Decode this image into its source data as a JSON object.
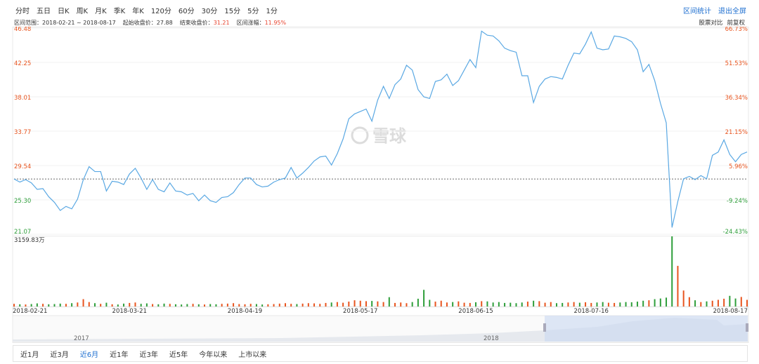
{
  "toolbar": {
    "periods": [
      "分时",
      "五日",
      "日K",
      "周K",
      "月K",
      "季K",
      "年K",
      "120分",
      "60分",
      "30分",
      "15分",
      "5分",
      "1分"
    ],
    "actions": [
      "区间统计",
      "退出全屏"
    ]
  },
  "info": {
    "range_label": "区间范围：",
    "range": "2018-02-21 ~ 2018-08-17",
    "start_label": "起始收盘价：",
    "end_label": "结束收盘价：",
    "change_label": "区间涨幅：",
    "change": "11.95%",
    "tools": [
      "股票对比",
      "前复权"
    ]
  },
  "range_tabs": [
    "近1月",
    "近3月",
    "近6月",
    "近1年",
    "近3年",
    "近5年",
    "今年以来",
    "上市以来"
  ],
  "active_tab_index": 2,
  "navigator": {
    "labels": [
      "2017",
      "2018"
    ]
  },
  "chart_data": {
    "type": "line",
    "watermark": "雪球",
    "color": "#5aa8e3",
    "up_color": "#e8541e",
    "down_color": "#2e9e3a",
    "start_close": 27.88,
    "categories": [
      "2018-02-21",
      null,
      null,
      null,
      null,
      null,
      null,
      null,
      null,
      null,
      null,
      null,
      null,
      null,
      null,
      null,
      null,
      null,
      null,
      null,
      "2018-03-21",
      null,
      null,
      null,
      null,
      null,
      null,
      null,
      null,
      null,
      null,
      null,
      null,
      null,
      null,
      null,
      null,
      null,
      null,
      null,
      "2018-04-19",
      null,
      null,
      null,
      null,
      null,
      null,
      null,
      null,
      null,
      null,
      null,
      null,
      null,
      null,
      null,
      null,
      null,
      null,
      null,
      "2018-05-17",
      null,
      null,
      null,
      null,
      null,
      null,
      null,
      null,
      null,
      null,
      null,
      null,
      null,
      null,
      null,
      null,
      null,
      null,
      null,
      "2018-06-15",
      null,
      null,
      null,
      null,
      null,
      null,
      null,
      null,
      null,
      null,
      null,
      null,
      null,
      null,
      null,
      null,
      null,
      null,
      null,
      "2018-07-16",
      null,
      null,
      null,
      null,
      null,
      null,
      null,
      null,
      null,
      null,
      null,
      null,
      null,
      null,
      null,
      null,
      null,
      null,
      null,
      null,
      null,
      null,
      null,
      null,
      null,
      null,
      "2018-08-17"
    ],
    "values": [
      27.88,
      27.5,
      27.8,
      27.4,
      26.6,
      26.7,
      25.7,
      25.0,
      24.0,
      24.5,
      24.2,
      25.4,
      27.8,
      29.4,
      28.8,
      28.8,
      26.4,
      27.6,
      27.5,
      27.2,
      28.5,
      29.2,
      28.0,
      26.6,
      27.8,
      26.6,
      26.3,
      27.4,
      26.4,
      26.3,
      25.9,
      26.1,
      25.2,
      25.9,
      25.2,
      25.0,
      25.6,
      25.7,
      26.2,
      27.2,
      28.0,
      28.0,
      27.2,
      26.9,
      27.0,
      27.5,
      27.8,
      28.0,
      29.3,
      28.0,
      28.6,
      29.3,
      30.1,
      30.6,
      30.7,
      29.6,
      31.0,
      32.8,
      35.3,
      35.9,
      36.2,
      36.5,
      35.0,
      37.6,
      39.3,
      37.8,
      39.5,
      40.2,
      41.9,
      41.3,
      38.9,
      38.0,
      37.8,
      39.9,
      40.1,
      40.8,
      39.4,
      40.0,
      41.3,
      42.6,
      41.6,
      46.1,
      45.6,
      45.5,
      44.9,
      44.0,
      43.7,
      43.5,
      40.6,
      40.6,
      37.3,
      39.3,
      40.2,
      40.5,
      40.4,
      40.2,
      41.9,
      43.4,
      43.3,
      44.5,
      46.0,
      44.0,
      43.8,
      43.9,
      45.5,
      45.4,
      45.2,
      44.8,
      43.8,
      41.1,
      42.0,
      40.0,
      37.2,
      34.8,
      21.9,
      25.1,
      27.9,
      28.2,
      27.8,
      28.3,
      27.9,
      30.8,
      31.2,
      32.7,
      30.9,
      30.0,
      30.9,
      31.21
    ],
    "ylim": [
      21.07,
      46.48
    ],
    "yticks": [
      21.07,
      {
        "value": 25.3,
        "label": "25.30"
      },
      29.54,
      33.77,
      38.01,
      42.25,
      46.48
    ],
    "y2lim": [
      -24.43,
      66.73
    ],
    "y2ticks": [
      {
        "value": -24.43,
        "label": "-24.43%"
      },
      {
        "value": -9.24,
        "label": "-9.24%"
      },
      {
        "value": 5.96,
        "label": "5.96%"
      },
      {
        "value": 21.15,
        "label": "21.15%"
      },
      {
        "value": 36.34,
        "label": "36.34%"
      },
      {
        "value": 51.53,
        "label": "51.53%"
      },
      {
        "value": 66.73,
        "label": "66.73%"
      }
    ],
    "volume": {
      "values": [
        120,
        100,
        90,
        110,
        140,
        120,
        100,
        110,
        130,
        120,
        150,
        180,
        330,
        200,
        150,
        120,
        170,
        100,
        90,
        130,
        160,
        180,
        120,
        140,
        110,
        100,
        130,
        120,
        100,
        90,
        110,
        120,
        100,
        90,
        110,
        100,
        120,
        130,
        150,
        110,
        100,
        120,
        110,
        90,
        100,
        110,
        130,
        150,
        120,
        110,
        130,
        150,
        140,
        120,
        160,
        180,
        200,
        170,
        220,
        280,
        260,
        240,
        250,
        230,
        200,
        420,
        160,
        180,
        150,
        200,
        350,
        750,
        300,
        220,
        260,
        180,
        200,
        230,
        170,
        160,
        190,
        240,
        230,
        180,
        200,
        160,
        170,
        150,
        180,
        220,
        260,
        240,
        170,
        200,
        150,
        160,
        180,
        200,
        170,
        190,
        160,
        180,
        200,
        170,
        160,
        180,
        200,
        190,
        220,
        260,
        280,
        330,
        360,
        400,
        3159.83,
        1830,
        720,
        420,
        280,
        200,
        230,
        260,
        300,
        350,
        480,
        360,
        430,
        300
      ],
      "vlim": [
        0,
        3159.83
      ],
      "vticks": [
        {
          "value": 3159.83,
          "label": "3159.83万"
        }
      ]
    }
  }
}
